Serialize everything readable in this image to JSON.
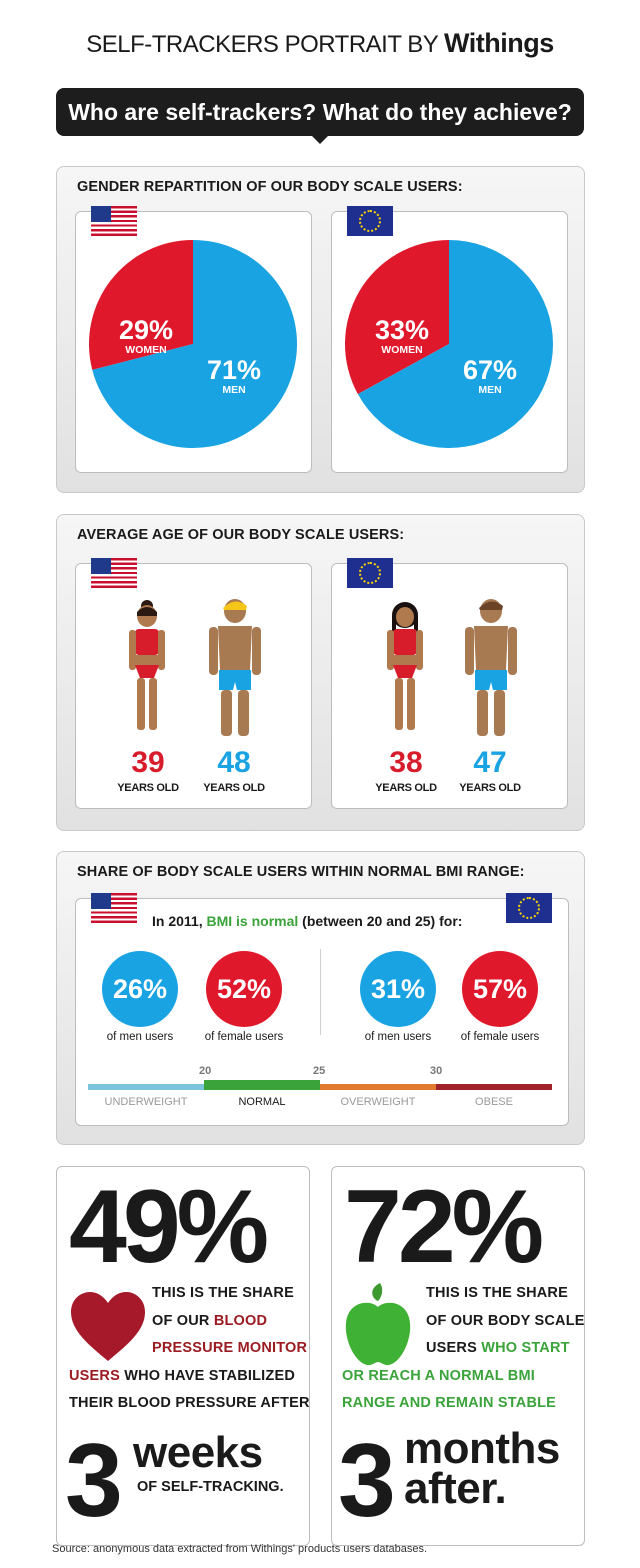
{
  "header": {
    "prefix": "SELF-TRACKERS PORTRAIT BY",
    "brand": "Withings"
  },
  "headline": "Who are self-trackers? What do they achieve?",
  "colors": {
    "red": "#e0182c",
    "blue": "#1aa3e2",
    "green": "#3aa33a",
    "dark_red": "#9b1b22"
  },
  "gender": {
    "title": "GENDER REPARTITION OF OUR BODY SCALE USERS:",
    "us": {
      "flag": "us-flag-icon",
      "women_pct": "29%",
      "women_label": "WOMEN",
      "men_pct": "71%",
      "men_label": "MEN"
    },
    "eu": {
      "flag": "eu-flag-icon",
      "women_pct": "33%",
      "women_label": "WOMEN",
      "men_pct": "67%",
      "men_label": "MEN"
    }
  },
  "chart_data": [
    {
      "type": "pie",
      "title": "GENDER REPARTITION OF OUR BODY SCALE USERS:",
      "region": "US",
      "categories": [
        "WOMEN",
        "MEN"
      ],
      "values": [
        29,
        71
      ],
      "colors": [
        "#e0182c",
        "#1aa3e2"
      ]
    },
    {
      "type": "pie",
      "title": "GENDER REPARTITION OF OUR BODY SCALE USERS:",
      "region": "EU",
      "categories": [
        "WOMEN",
        "MEN"
      ],
      "values": [
        33,
        67
      ],
      "colors": [
        "#e0182c",
        "#1aa3e2"
      ]
    }
  ],
  "age": {
    "title": "AVERAGE AGE OF OUR BODY SCALE USERS:",
    "us": {
      "women": "39",
      "men": "48",
      "unit": "YEARS OLD"
    },
    "eu": {
      "women": "38",
      "men": "47",
      "unit": "YEARS OLD"
    }
  },
  "bmi": {
    "title": "SHARE OF BODY SCALE USERS WITHIN NORMAL BMI RANGE:",
    "intro_a": "In 2011,",
    "intro_b": "BMI is normal",
    "intro_c": "(between 20 and 25) for:",
    "us": {
      "men": "26%",
      "men_label": "of men users",
      "women": "52%",
      "women_label": "of female users"
    },
    "eu": {
      "men": "31%",
      "men_label": "of men users",
      "women": "57%",
      "women_label": "of female users"
    },
    "scale": {
      "ticks": [
        "20",
        "25",
        "30"
      ],
      "labels": [
        "UNDERWEIGHT",
        "NORMAL",
        "OVERWEIGHT",
        "OBESE"
      ]
    }
  },
  "stat_left": {
    "pct": "49%",
    "icon": "heart-icon",
    "line1": "THIS IS THE SHARE",
    "line2a": "OF OUR ",
    "line2b": "BLOOD",
    "line3": "PRESSURE MONITOR",
    "line4a": "USERS",
    "line4b": " WHO HAVE STABILIZED",
    "line5": "THEIR BLOOD PRESSURE AFTER",
    "number": "3",
    "word": "weeks",
    "tail": "OF SELF-TRACKING."
  },
  "stat_right": {
    "pct": "72%",
    "icon": "apple-icon",
    "line1": "THIS IS THE SHARE",
    "line2": "OF OUR BODY SCALE",
    "line3a": "USERS ",
    "line3b": "WHO START",
    "line4": "OR REACH A NORMAL BMI",
    "line5": "RANGE AND REMAIN STABLE",
    "number": "3",
    "word1": "months",
    "word2": "after."
  },
  "source": "Source: anonymous data extracted from Withings' products users databases."
}
